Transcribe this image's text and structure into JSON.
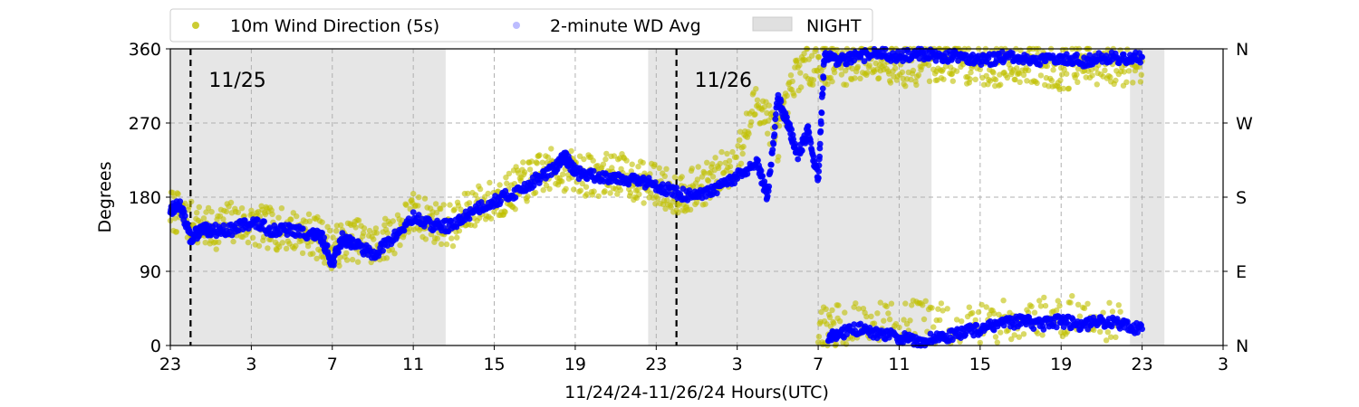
{
  "chart_data": {
    "type": "scatter",
    "xlabel": "11/24/24-11/26/24  Hours(UTC)",
    "ylabel": "Degrees",
    "xlim": [
      -1,
      51
    ],
    "ylim": [
      0,
      360
    ],
    "x_ticks": [
      -1,
      3,
      7,
      11,
      15,
      19,
      23,
      27,
      31,
      35,
      39,
      43,
      47,
      51
    ],
    "x_tick_labels": [
      "23",
      "3",
      "7",
      "11",
      "15",
      "19",
      "23",
      "3",
      "7",
      "11",
      "15",
      "19",
      "23",
      "3"
    ],
    "y_ticks": [
      0,
      90,
      180,
      270,
      360
    ],
    "y_tick_labels": [
      "0",
      "90",
      "180",
      "270",
      "360"
    ],
    "right_y_ticks": [
      0,
      90,
      180,
      270,
      360
    ],
    "right_y_tick_labels": [
      "N",
      "E",
      "S",
      "W",
      "N"
    ],
    "grid": true,
    "legend_position": "top-left, outside above plot",
    "night_spans": [
      [
        -1,
        12.6
      ],
      [
        22.6,
        36.6
      ],
      [
        46.4,
        48.1
      ]
    ],
    "day_markers": [
      {
        "x": 0,
        "label": "11/25"
      },
      {
        "x": 24,
        "label": "11/26"
      }
    ],
    "series": [
      {
        "name": "10m Wind Direction (5s)",
        "color": "#bfbf00",
        "marker": "dot",
        "points": [
          [
            -1,
            165
          ],
          [
            0,
            150
          ],
          [
            1,
            140
          ],
          [
            2,
            150
          ],
          [
            3,
            145
          ],
          [
            4,
            142
          ],
          [
            5,
            140
          ],
          [
            6,
            135
          ],
          [
            7,
            118
          ],
          [
            8,
            130
          ],
          [
            9,
            120
          ],
          [
            10,
            135
          ],
          [
            11,
            160
          ],
          [
            12,
            150
          ],
          [
            13,
            145
          ],
          [
            14,
            170
          ],
          [
            15,
            175
          ],
          [
            16,
            190
          ],
          [
            17,
            205
          ],
          [
            18,
            215
          ],
          [
            19,
            210
          ],
          [
            20,
            205
          ],
          [
            21,
            210
          ],
          [
            22,
            200
          ],
          [
            23,
            195
          ],
          [
            24,
            185
          ],
          [
            25,
            190
          ],
          [
            26,
            205
          ],
          [
            27,
            225
          ],
          [
            28,
            300
          ],
          [
            29,
            250
          ],
          [
            30,
            335
          ],
          [
            31,
            345
          ],
          [
            32,
            340
          ],
          [
            33,
            345
          ],
          [
            34,
            350
          ],
          [
            35,
            340
          ],
          [
            36,
            340
          ],
          [
            37,
            345
          ],
          [
            38,
            345
          ],
          [
            39,
            340
          ],
          [
            40,
            340
          ],
          [
            41,
            345
          ],
          [
            42,
            340
          ],
          [
            43,
            335
          ],
          [
            44,
            340
          ],
          [
            45,
            335
          ],
          [
            46,
            340
          ],
          [
            47,
            345
          ],
          [
            31,
            20
          ],
          [
            32,
            25
          ],
          [
            34,
            30
          ],
          [
            36,
            30
          ],
          [
            38,
            25
          ],
          [
            40,
            30
          ],
          [
            42,
            35
          ],
          [
            44,
            35
          ],
          [
            46,
            30
          ]
        ]
      },
      {
        "name": "2-minute WD Avg",
        "color": "#0000ff",
        "marker": "dot",
        "points": [
          [
            -1,
            165
          ],
          [
            -0.5,
            170
          ],
          [
            0,
            130
          ],
          [
            0.5,
            140
          ],
          [
            1,
            140
          ],
          [
            2,
            140
          ],
          [
            3,
            150
          ],
          [
            4,
            140
          ],
          [
            5,
            140
          ],
          [
            6,
            135
          ],
          [
            6.5,
            130
          ],
          [
            7,
            100
          ],
          [
            7.5,
            130
          ],
          [
            8,
            125
          ],
          [
            9,
            110
          ],
          [
            10,
            130
          ],
          [
            11,
            155
          ],
          [
            12,
            145
          ],
          [
            13,
            145
          ],
          [
            14,
            165
          ],
          [
            15,
            175
          ],
          [
            16,
            185
          ],
          [
            17,
            200
          ],
          [
            18,
            215
          ],
          [
            18.5,
            230
          ],
          [
            19,
            210
          ],
          [
            20,
            205
          ],
          [
            21,
            205
          ],
          [
            22,
            200
          ],
          [
            23,
            195
          ],
          [
            24,
            185
          ],
          [
            25,
            180
          ],
          [
            26,
            190
          ],
          [
            27,
            205
          ],
          [
            28,
            220
          ],
          [
            28.5,
            180
          ],
          [
            29,
            300
          ],
          [
            29.5,
            270
          ],
          [
            30,
            230
          ],
          [
            30.5,
            260
          ],
          [
            31,
            200
          ],
          [
            31.3,
            350
          ],
          [
            32,
            345
          ],
          [
            33,
            350
          ],
          [
            34,
            355
          ],
          [
            35,
            350
          ],
          [
            36,
            355
          ],
          [
            37,
            350
          ],
          [
            38,
            352
          ],
          [
            39,
            345
          ],
          [
            40,
            350
          ],
          [
            41,
            348
          ],
          [
            42,
            345
          ],
          [
            43,
            350
          ],
          [
            44,
            345
          ],
          [
            45,
            350
          ],
          [
            46,
            348
          ],
          [
            47,
            350
          ],
          [
            31.5,
            10
          ],
          [
            32,
            15
          ],
          [
            33,
            20
          ],
          [
            34,
            15
          ],
          [
            35,
            10
          ],
          [
            36,
            5
          ],
          [
            37,
            10
          ],
          [
            38,
            15
          ],
          [
            39,
            20
          ],
          [
            40,
            25
          ],
          [
            41,
            30
          ],
          [
            42,
            25
          ],
          [
            43,
            30
          ],
          [
            44,
            25
          ],
          [
            45,
            30
          ],
          [
            46,
            25
          ],
          [
            47,
            20
          ]
        ]
      }
    ]
  },
  "legend": {
    "items": [
      {
        "label": "10m Wind Direction (5s)",
        "color": "#bfbf00"
      },
      {
        "label": "2-minute WD Avg",
        "color": "#6b6bff"
      },
      {
        "label": "NIGHT",
        "color": "#e0e0e0"
      }
    ]
  }
}
